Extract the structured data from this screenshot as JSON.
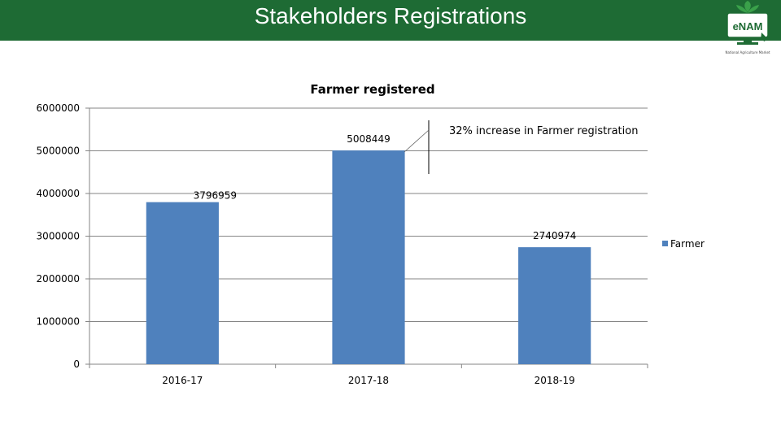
{
  "header": {
    "title": "Stakeholders Registrations",
    "bg_color": "#1e6b34"
  },
  "logo": {
    "text": "eNAM",
    "tagline": "National Agriculture Market",
    "icon": "enam-logo-icon"
  },
  "chart_data": {
    "type": "bar",
    "title": "Farmer registered",
    "categories": [
      "2016-17",
      "2017-18",
      "2018-19"
    ],
    "series": [
      {
        "name": "Farmer",
        "values": [
          3796959,
          5008449,
          2740974
        ],
        "color": "#4f81bd"
      }
    ],
    "data_labels": [
      "3796959",
      "5008449",
      "2740974"
    ],
    "ylim": [
      0,
      6000000
    ],
    "yticks": [
      "0",
      "1000000",
      "2000000",
      "3000000",
      "4000000",
      "5000000",
      "6000000"
    ],
    "grid": true,
    "legend_position": "right",
    "annotation": "32% increase in Farmer registration"
  }
}
